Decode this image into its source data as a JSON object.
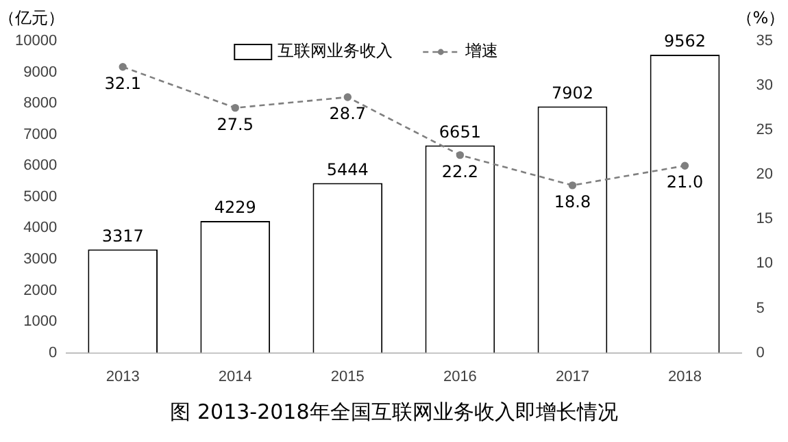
{
  "chart_data": {
    "type": "bar",
    "title": "图 2013-2018年全国互联网业务收入即增长情况",
    "ylabel": "（亿元）",
    "y2label": "（%）",
    "categories": [
      "2013",
      "2014",
      "2015",
      "2016",
      "2017",
      "2018"
    ],
    "series": [
      {
        "name": "互联网业务收入",
        "color": "#ffffff",
        "values": [
          3317,
          4229,
          5444,
          6651,
          7902,
          9562
        ],
        "value_labels": [
          "3317",
          "4229",
          "5444",
          "6651",
          "7902",
          "9562"
        ]
      },
      {
        "name": "增速",
        "type": "line",
        "axis": "y2",
        "color": "#7f7f7f",
        "line_style": "dashed",
        "marker": "circle",
        "values": [
          32.1,
          27.5,
          28.7,
          22.2,
          18.8,
          21.0
        ],
        "value_labels": [
          "32.1",
          "27.5",
          "28.7",
          "22.2",
          "18.8",
          "21.0"
        ]
      }
    ],
    "ylim": [
      0,
      10000
    ],
    "yticks": [
      0,
      1000,
      2000,
      3000,
      4000,
      5000,
      6000,
      7000,
      8000,
      9000,
      10000
    ],
    "y2lim": [
      0,
      35
    ],
    "y2ticks": [
      0,
      5,
      10,
      15,
      20,
      25,
      30,
      35
    ],
    "grid": false,
    "legend": "top"
  }
}
